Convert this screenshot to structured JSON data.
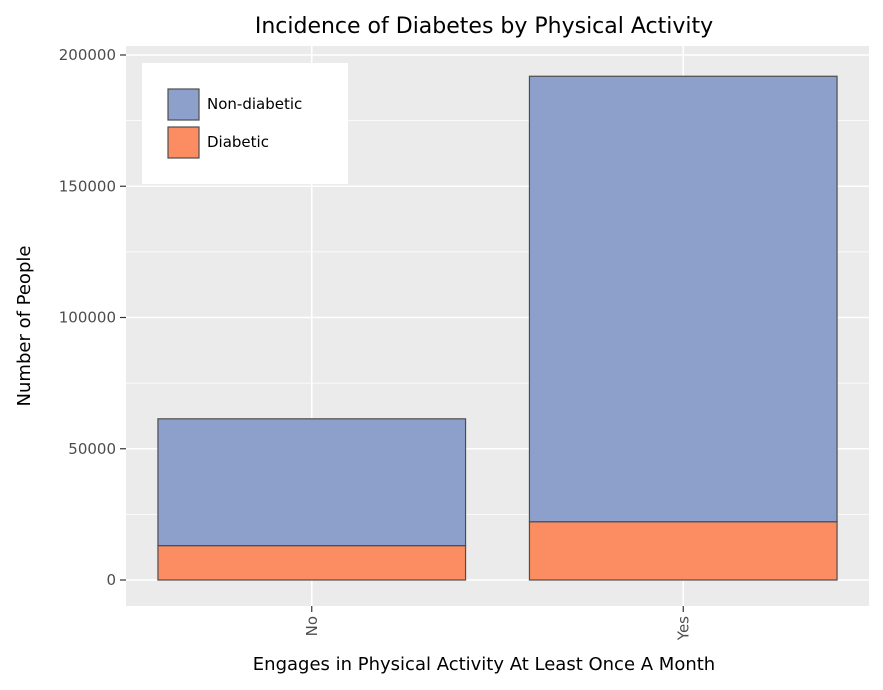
{
  "chart_data": {
    "type": "bar",
    "stacked": true,
    "title": "Incidence of Diabetes by Physical Activity",
    "xlabel": "Engages in Physical Activity At Least Once A Month",
    "ylabel": "Number of People",
    "categories": [
      "No",
      "Yes"
    ],
    "series": [
      {
        "name": "Diabetic",
        "values": [
          13100,
          22200
        ],
        "color": "#fc8d62"
      },
      {
        "name": "Non-diabetic",
        "values": [
          48300,
          169700
        ],
        "color": "#8da0cb"
      }
    ],
    "legend_order": [
      "Non-diabetic",
      "Diabetic"
    ],
    "ylim": [
      0,
      200000
    ],
    "yticks": [
      0,
      50000,
      100000,
      150000,
      200000
    ],
    "ytick_labels": [
      "0",
      "50000",
      "100000",
      "150000",
      "200000"
    ],
    "legend_position": "top-left",
    "grid": true,
    "panel_color": "#ebebeb"
  }
}
